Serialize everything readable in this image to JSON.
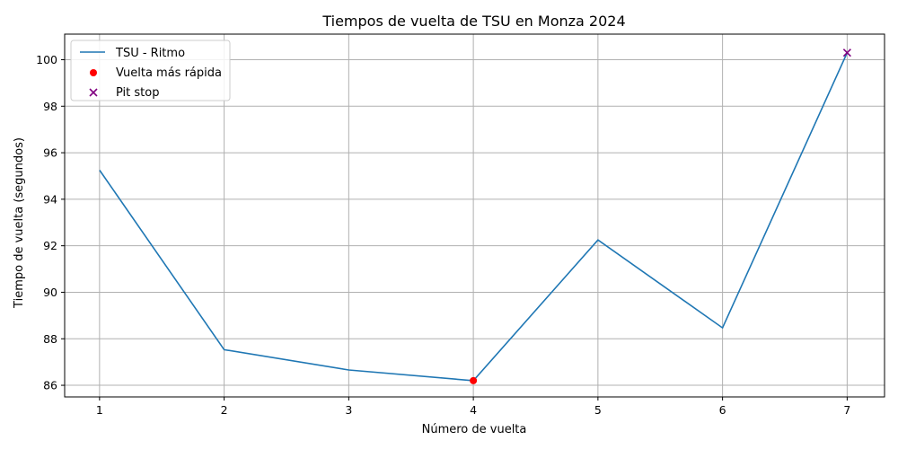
{
  "chart_data": {
    "type": "line",
    "title": "Tiempos de vuelta de TSU en Monza 2024",
    "xlabel": "Número de vuelta",
    "ylabel": "Tiempo de vuelta (segundos)",
    "x": [
      1,
      2,
      3,
      4,
      5,
      6,
      7
    ],
    "xlim": [
      0.72,
      7.3
    ],
    "ylim": [
      85.5,
      101.1
    ],
    "xticks": [
      1,
      2,
      3,
      4,
      5,
      6,
      7
    ],
    "yticks": [
      86,
      88,
      90,
      92,
      94,
      96,
      98,
      100
    ],
    "grid": true,
    "legend_position": "top-left",
    "series": [
      {
        "name": "TSU - Ritmo",
        "kind": "line",
        "color": "#1f77b4",
        "values": [
          95.25,
          87.53,
          86.66,
          86.2,
          92.25,
          88.47,
          100.3
        ]
      },
      {
        "name": "Vuelta más rápida",
        "kind": "scatter",
        "marker": "circle",
        "color": "#ff0000",
        "points": [
          {
            "x": 4,
            "y": 86.2
          }
        ]
      },
      {
        "name": "Pit stop",
        "kind": "scatter",
        "marker": "x",
        "color": "#800080",
        "points": [
          {
            "x": 7,
            "y": 100.3
          }
        ]
      }
    ]
  }
}
